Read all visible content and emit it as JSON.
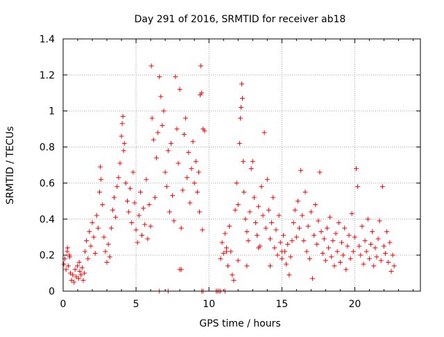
{
  "chart_data": {
    "type": "scatter",
    "title": "Day 291 of 2016, SRMTID for receiver ab18",
    "xlabel": "GPS time / hours",
    "ylabel": "SRMTID / TECUs",
    "xlim": [
      0,
      24.5
    ],
    "ylim": [
      0,
      1.4
    ],
    "x_ticks": [
      0,
      5,
      10,
      15,
      20
    ],
    "x_tick_labels": [
      "0",
      "5",
      "10",
      "15",
      "20"
    ],
    "y_ticks": [
      0,
      0.2,
      0.4,
      0.6,
      0.8,
      1.0,
      1.2,
      1.4
    ],
    "y_tick_labels": [
      "0",
      "0.2",
      "0.4",
      "0.6",
      "0.8",
      "1",
      "1.2",
      "1.4"
    ],
    "grid": true,
    "marker": "+",
    "color": "#ff0000",
    "series": [
      {
        "name": "SRMTID",
        "points": [
          [
            0.05,
            0.15
          ],
          [
            0.12,
            0.18
          ],
          [
            0.2,
            0.12
          ],
          [
            0.28,
            0.22
          ],
          [
            0.35,
            0.14
          ],
          [
            0.42,
            0.2
          ],
          [
            0.5,
            0.1
          ],
          [
            0.58,
            0.06
          ],
          [
            0.66,
            0.09
          ],
          [
            0.74,
            0.05
          ],
          [
            0.82,
            0.12
          ],
          [
            0.9,
            0.08
          ],
          [
            0.98,
            0.14
          ],
          [
            1.06,
            0.07
          ],
          [
            1.14,
            0.11
          ],
          [
            1.22,
            0.09
          ],
          [
            1.3,
            0.13
          ],
          [
            1.38,
            0.06
          ],
          [
            1.46,
            0.1
          ],
          [
            0.3,
            0.24
          ],
          [
            0.45,
            0.19
          ],
          [
            1.1,
            0.16
          ],
          [
            1.5,
            0.22
          ],
          [
            1.6,
            0.28
          ],
          [
            1.7,
            0.18
          ],
          [
            1.8,
            0.33
          ],
          [
            1.9,
            0.25
          ],
          [
            2.0,
            0.38
          ],
          [
            2.1,
            0.3
          ],
          [
            2.2,
            0.21
          ],
          [
            2.3,
            0.42
          ],
          [
            2.4,
            0.35
          ],
          [
            2.5,
            0.55
          ],
          [
            2.6,
            0.62
          ],
          [
            2.55,
            0.69
          ],
          [
            2.7,
            0.48
          ],
          [
            2.8,
            0.3
          ],
          [
            2.9,
            0.22
          ],
          [
            3.0,
            0.16
          ],
          [
            3.1,
            0.26
          ],
          [
            3.2,
            0.19
          ],
          [
            3.3,
            0.35
          ],
          [
            3.4,
            0.45
          ],
          [
            3.5,
            0.52
          ],
          [
            3.6,
            0.41
          ],
          [
            3.7,
            0.58
          ],
          [
            3.8,
            0.63
          ],
          [
            3.9,
            0.71
          ],
          [
            4.0,
            0.86
          ],
          [
            4.05,
            0.93
          ],
          [
            4.1,
            0.97
          ],
          [
            4.15,
            0.78
          ],
          [
            4.2,
            0.82
          ],
          [
            4.3,
            0.6
          ],
          [
            4.4,
            0.5
          ],
          [
            4.5,
            0.44
          ],
          [
            4.6,
            0.57
          ],
          [
            4.7,
            0.38
          ],
          [
            4.8,
            0.66
          ],
          [
            4.9,
            0.49
          ],
          [
            5.0,
            0.34
          ],
          [
            5.1,
            0.27
          ],
          [
            5.2,
            0.42
          ],
          [
            5.3,
            0.55
          ],
          [
            5.4,
            0.31
          ],
          [
            5.5,
            0.46
          ],
          [
            5.6,
            0.37
          ],
          [
            5.7,
            0.62
          ],
          [
            5.8,
            0.29
          ],
          [
            5.9,
            0.48
          ],
          [
            6.0,
            0.36
          ],
          [
            6.05,
            1.25
          ],
          [
            6.1,
            0.96
          ],
          [
            6.2,
            0.84
          ],
          [
            6.3,
            0.52
          ],
          [
            6.4,
            0.74
          ],
          [
            6.5,
            0.88
          ],
          [
            6.6,
            1.19
          ],
          [
            6.7,
            1.08
          ],
          [
            6.8,
            0.92
          ],
          [
            6.9,
            1.0
          ],
          [
            7.0,
            0.66
          ],
          [
            7.1,
            0.58
          ],
          [
            7.2,
            0.78
          ],
          [
            7.3,
            0.44
          ],
          [
            7.4,
            0.82
          ],
          [
            7.5,
            0.53
          ],
          [
            7.6,
            0.39
          ],
          [
            7.7,
            1.19
          ],
          [
            7.8,
            0.9
          ],
          [
            7.9,
            0.71
          ],
          [
            8.0,
            1.12
          ],
          [
            8.1,
            0.35
          ],
          [
            8.2,
            0.56
          ],
          [
            8.3,
            0.87
          ],
          [
            8.4,
            0.96
          ],
          [
            8.5,
            0.63
          ],
          [
            8.6,
            0.77
          ],
          [
            8.7,
            0.49
          ],
          [
            8.8,
            0.68
          ],
          [
            8.9,
            0.83
          ],
          [
            9.0,
            0.6
          ],
          [
            9.1,
            0.72
          ],
          [
            9.2,
            0.55
          ],
          [
            9.3,
            0.66
          ],
          [
            9.35,
            0.44
          ],
          [
            9.4,
            1.09
          ],
          [
            9.45,
            1.25
          ],
          [
            9.5,
            1.1
          ],
          [
            9.6,
            0.9
          ],
          [
            9.7,
            0.89
          ],
          [
            8.0,
            0.12
          ],
          [
            8.1,
            0.12
          ],
          [
            9.55,
            0.34
          ],
          [
            10.8,
            0.18
          ],
          [
            10.9,
            0.27
          ],
          [
            11.0,
            0.21
          ],
          [
            11.1,
            0.32
          ],
          [
            11.2,
            0.24
          ],
          [
            11.3,
            0.14
          ],
          [
            11.4,
            0.36
          ],
          [
            11.5,
            0.22
          ],
          [
            11.6,
            0.09
          ],
          [
            11.7,
            0.06
          ],
          [
            11.8,
            0.45
          ],
          [
            11.9,
            0.6
          ],
          [
            12.0,
            0.48
          ],
          [
            12.1,
            0.82
          ],
          [
            12.15,
            0.96
          ],
          [
            12.2,
            1.02
          ],
          [
            12.25,
            1.15
          ],
          [
            12.3,
            1.07
          ],
          [
            12.35,
            0.72
          ],
          [
            12.4,
            0.55
          ],
          [
            12.5,
            0.4
          ],
          [
            12.6,
            0.33
          ],
          [
            12.7,
            0.28
          ],
          [
            12.8,
            0.44
          ],
          [
            12.9,
            0.68
          ],
          [
            13.0,
            0.72
          ],
          [
            13.1,
            0.52
          ],
          [
            13.2,
            0.38
          ],
          [
            13.3,
            0.31
          ],
          [
            13.4,
            0.47
          ],
          [
            13.5,
            0.25
          ],
          [
            13.6,
            0.58
          ],
          [
            13.7,
            0.42
          ],
          [
            13.8,
            0.88
          ],
          [
            13.9,
            0.35
          ],
          [
            14.0,
            0.62
          ],
          [
            14.1,
            0.45
          ],
          [
            14.2,
            0.29
          ],
          [
            14.3,
            0.38
          ],
          [
            14.4,
            0.52
          ],
          [
            14.5,
            0.24
          ],
          [
            14.6,
            0.34
          ],
          [
            14.7,
            0.2
          ],
          [
            14.8,
            0.42
          ],
          [
            14.9,
            0.27
          ],
          [
            15.0,
            0.18
          ],
          [
            15.1,
            0.31
          ],
          [
            15.2,
            0.22
          ],
          [
            15.3,
            0.15
          ],
          [
            15.4,
            0.26
          ],
          [
            15.5,
            0.09
          ],
          [
            15.6,
            0.19
          ],
          [
            15.7,
            0.28
          ],
          [
            11.2,
            0.22
          ],
          [
            12.0,
            0.17
          ],
          [
            12.6,
            0.14
          ],
          [
            13.4,
            0.24
          ],
          [
            14.2,
            0.14
          ],
          [
            15.0,
            0.22
          ],
          [
            15.8,
            0.38
          ],
          [
            15.9,
            0.45
          ],
          [
            16.0,
            0.3
          ],
          [
            16.1,
            0.5
          ],
          [
            16.2,
            0.35
          ],
          [
            16.3,
            0.67
          ],
          [
            16.4,
            0.42
          ],
          [
            16.5,
            0.28
          ],
          [
            16.6,
            0.55
          ],
          [
            16.7,
            0.22
          ],
          [
            16.8,
            0.36
          ],
          [
            16.9,
            0.18
          ],
          [
            17.0,
            0.44
          ],
          [
            17.1,
            0.07
          ],
          [
            17.2,
            0.31
          ],
          [
            17.3,
            0.48
          ],
          [
            17.4,
            0.26
          ],
          [
            17.5,
            0.39
          ],
          [
            17.6,
            0.66
          ],
          [
            17.7,
            0.33
          ],
          [
            17.8,
            0.21
          ],
          [
            17.9,
            0.29
          ],
          [
            18.0,
            0.17
          ],
          [
            18.1,
            0.35
          ],
          [
            18.2,
            0.24
          ],
          [
            18.3,
            0.41
          ],
          [
            18.4,
            0.19
          ],
          [
            18.5,
            0.28
          ],
          [
            18.6,
            0.14
          ],
          [
            18.7,
            0.32
          ],
          [
            18.8,
            0.22
          ],
          [
            18.9,
            0.38
          ],
          [
            19.0,
            0.16
          ],
          [
            19.1,
            0.27
          ],
          [
            19.2,
            0.2
          ],
          [
            19.3,
            0.35
          ],
          [
            19.4,
            0.12
          ],
          [
            19.5,
            0.25
          ],
          [
            19.6,
            0.31
          ],
          [
            19.7,
            0.18
          ],
          [
            19.8,
            0.43
          ],
          [
            19.9,
            0.22
          ],
          [
            20.0,
            0.3
          ],
          [
            20.1,
            0.68
          ],
          [
            20.2,
            0.58
          ],
          [
            20.3,
            0.25
          ],
          [
            20.4,
            0.2
          ],
          [
            20.5,
            0.36
          ],
          [
            20.6,
            0.15
          ],
          [
            20.7,
            0.28
          ],
          [
            20.8,
            0.22
          ],
          [
            20.9,
            0.4
          ],
          [
            21.0,
            0.18
          ],
          [
            21.1,
            0.26
          ],
          [
            21.2,
            0.33
          ],
          [
            21.3,
            0.14
          ],
          [
            21.4,
            0.24
          ],
          [
            21.5,
            0.19
          ],
          [
            21.6,
            0.29
          ],
          [
            21.7,
            0.39
          ],
          [
            21.8,
            0.17
          ],
          [
            21.9,
            0.58
          ],
          [
            22.0,
            0.25
          ],
          [
            22.1,
            0.21
          ],
          [
            22.2,
            0.33
          ],
          [
            22.3,
            0.16
          ],
          [
            22.4,
            0.27
          ],
          [
            22.5,
            0.11
          ],
          [
            22.6,
            0.2
          ],
          [
            22.7,
            0.14
          ]
        ]
      }
    ],
    "zero_points_x": [
      6.6,
      7.2,
      9.5,
      9.6,
      10.5,
      10.6,
      10.7,
      10.8,
      11.1
    ]
  }
}
